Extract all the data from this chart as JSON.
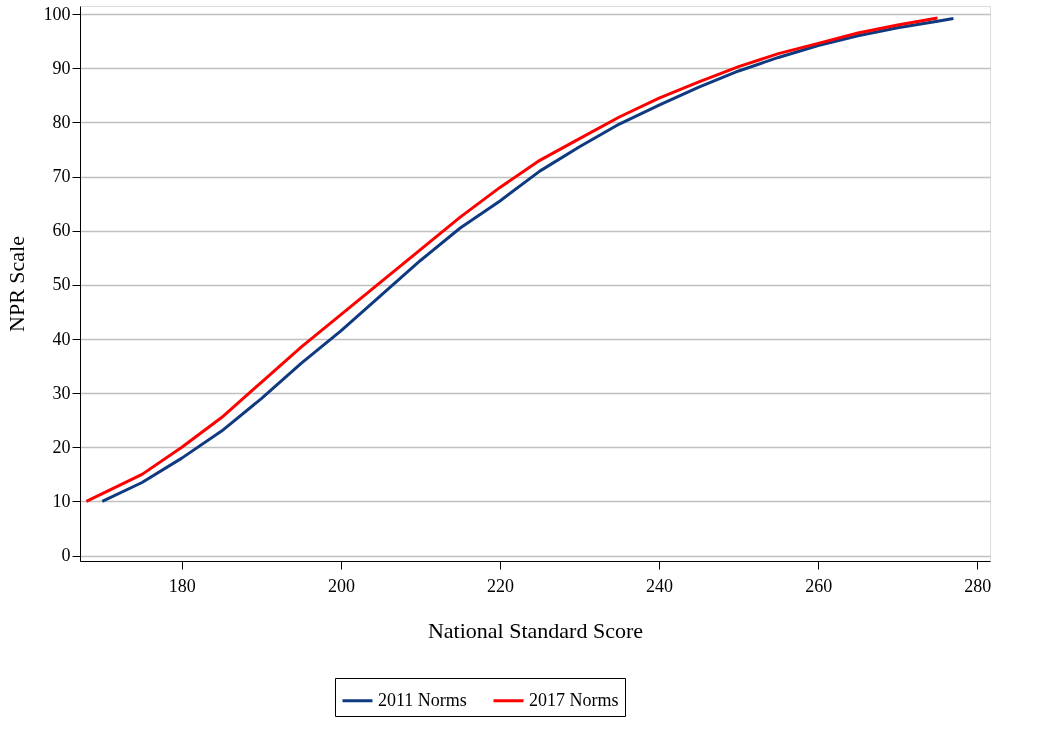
{
  "chart_data": {
    "type": "line",
    "xlabel": "National Standard Score",
    "ylabel": "NPR Scale",
    "xlim": [
      167.2,
      281.6
    ],
    "ylim": [
      -1,
      101.5
    ],
    "xticks": [
      180,
      200,
      220,
      240,
      260,
      280
    ],
    "yticks": [
      0,
      10,
      20,
      30,
      40,
      50,
      60,
      70,
      80,
      90,
      100
    ],
    "grid": "y",
    "legend": "bottom",
    "marker": "none",
    "line_style": "solid",
    "series": [
      {
        "name": "2011 Norms",
        "color": "#0f3a80",
        "x": [
          170,
          175,
          180,
          185,
          190,
          195,
          200,
          205,
          210,
          215,
          220,
          225,
          230,
          235,
          240,
          245,
          250,
          255,
          260,
          265,
          270,
          275,
          277
        ],
        "values": [
          10,
          13.5,
          18,
          23,
          29,
          35.5,
          41.5,
          48,
          54.5,
          60.5,
          65.5,
          71,
          75.5,
          79.7,
          83.2,
          86.5,
          89.5,
          92,
          94.2,
          96,
          97.5,
          98.7,
          99.2
        ]
      },
      {
        "name": "2017 Norms",
        "color": "#ff0000",
        "x": [
          168,
          175,
          180,
          185,
          190,
          195,
          200,
          205,
          210,
          215,
          220,
          225,
          230,
          235,
          240,
          245,
          250,
          255,
          260,
          265,
          270,
          275
        ],
        "values": [
          10,
          15,
          20,
          25.5,
          32,
          38.5,
          44.5,
          50.5,
          56.5,
          62.5,
          68,
          73,
          77,
          81,
          84.5,
          87.5,
          90.3,
          92.7,
          94.6,
          96.5,
          98,
          99.3
        ]
      }
    ]
  }
}
